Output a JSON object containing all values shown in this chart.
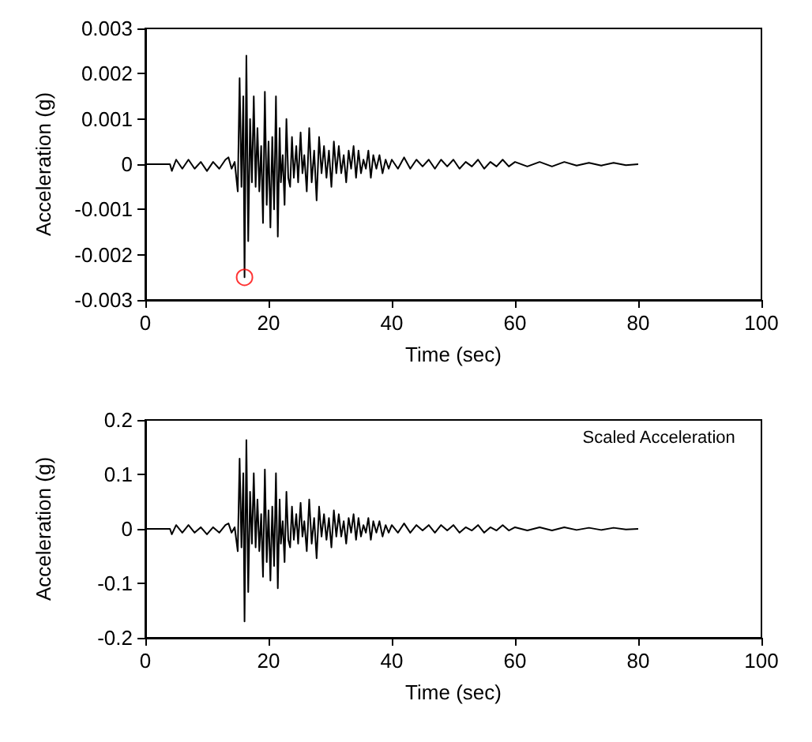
{
  "chart_data": [
    {
      "type": "line",
      "xlabel": "Time (sec)",
      "ylabel": "Acceleration (g)",
      "xlim": [
        0,
        100
      ],
      "xticks": [
        0,
        20,
        40,
        60,
        80,
        100
      ],
      "ylim": [
        -0.003,
        0.003
      ],
      "yticks": [
        -0.003,
        -0.002,
        -0.001,
        0,
        0.001,
        0.002,
        0.003
      ],
      "grid": false,
      "series": [
        {
          "color": "#000000",
          "marker": "none",
          "x": [
            0,
            4,
            4.3,
            5,
            6,
            7,
            8,
            9,
            10,
            11,
            12,
            13,
            13.5,
            14,
            14.5,
            15,
            15.3,
            15.6,
            15.9,
            16.1,
            16.4,
            16.7,
            17,
            17.3,
            17.6,
            17.9,
            18.2,
            18.5,
            18.8,
            19.1,
            19.4,
            19.7,
            20,
            20.3,
            20.6,
            20.9,
            21.2,
            21.5,
            21.8,
            22,
            22.3,
            22.6,
            22.9,
            23.2,
            23.5,
            23.8,
            24.1,
            24.5,
            24.8,
            25.2,
            25.5,
            25.8,
            26.2,
            26.6,
            27,
            27.4,
            27.8,
            28.2,
            28.6,
            29,
            29.4,
            29.8,
            30.2,
            30.6,
            31,
            31.4,
            31.8,
            32.2,
            32.6,
            33,
            33.4,
            33.8,
            34.2,
            34.6,
            35,
            35.4,
            35.8,
            36.2,
            36.6,
            37,
            37.5,
            38,
            38.5,
            39,
            39.5,
            40,
            41,
            42,
            43,
            44,
            45,
            46,
            47,
            48,
            49,
            50,
            51,
            52,
            53,
            54,
            55,
            56,
            57,
            58,
            59,
            60,
            62,
            64,
            66,
            68,
            70,
            72,
            74,
            76,
            78,
            80
          ],
          "values": [
            0,
            0,
            -0.00015,
            0.0001,
            -0.0001,
            0.0001,
            -0.0001,
            5e-05,
            -0.00015,
            5e-05,
            -0.0001,
            0.0001,
            0.00015,
            -0.0001,
            5e-05,
            -0.0006,
            0.0019,
            -0.0005,
            0.0015,
            -0.0025,
            0.0024,
            -0.0017,
            0.001,
            -0.0004,
            0.0015,
            -0.0005,
            0.0008,
            -0.0006,
            0.0004,
            -0.0013,
            0.0016,
            -0.0009,
            0.0005,
            -0.0014,
            0.0006,
            -0.001,
            0.0015,
            -0.0016,
            0.0008,
            -0.0004,
            0.0002,
            -0.0009,
            0.001,
            -0.0003,
            -0.0005,
            0.0006,
            -0.0003,
            0.0004,
            -0.0004,
            0.0007,
            -0.0002,
            0.0002,
            -0.0006,
            0.0008,
            -0.0004,
            0.0003,
            -0.0008,
            0.0006,
            -0.0002,
            0.0004,
            -0.0003,
            0.0003,
            -0.0005,
            0.0005,
            -0.0002,
            0.0004,
            -0.0002,
            0.0002,
            -0.0004,
            0.0003,
            -0.0001,
            0.0004,
            -0.0003,
            0.0003,
            -0.0002,
            0.0001,
            -0.0001,
            0.0003,
            -0.0003,
            0.0002,
            -0.0001,
            0.0002,
            -0.0002,
            0.0001,
            -0.0001,
            0.0001,
            -0.0001,
            0.00015,
            -0.0001,
            0.0001,
            -5e-05,
            0.0001,
            -0.0001,
            0.0001,
            -5e-05,
            0.0001,
            -0.0001,
            5e-05,
            -5e-05,
            0.0001,
            -0.0001,
            5e-05,
            -5e-05,
            0.0001,
            -5e-05,
            5e-05,
            -5e-05,
            5e-05,
            -5e-05,
            5e-05,
            -3e-05,
            3e-05,
            -3e-05,
            3e-05,
            -2e-05,
            0
          ]
        },
        {
          "type": "scatter",
          "color": "#ff0000",
          "marker": "circle",
          "x": [
            16.1
          ],
          "values": [
            -0.0025
          ]
        }
      ]
    },
    {
      "type": "line",
      "xlabel": "Time (sec)",
      "ylabel": "Acceleration (g)",
      "xlim": [
        0,
        100
      ],
      "xticks": [
        0,
        20,
        40,
        60,
        80,
        100
      ],
      "ylim": [
        -0.2,
        0.2
      ],
      "yticks": [
        -0.2,
        -0.1,
        0,
        0.1,
        0.2
      ],
      "grid": false,
      "annotations": [
        "Scaled Acceleration"
      ],
      "series": [
        {
          "color": "#000000",
          "marker": "none",
          "x": [
            0,
            4,
            4.3,
            5,
            6,
            7,
            8,
            9,
            10,
            11,
            12,
            13,
            13.5,
            14,
            14.5,
            15,
            15.3,
            15.6,
            15.9,
            16.1,
            16.4,
            16.7,
            17,
            17.3,
            17.6,
            17.9,
            18.2,
            18.5,
            18.8,
            19.1,
            19.4,
            19.7,
            20,
            20.3,
            20.6,
            20.9,
            21.2,
            21.5,
            21.8,
            22,
            22.3,
            22.6,
            22.9,
            23.2,
            23.5,
            23.8,
            24.1,
            24.5,
            24.8,
            25.2,
            25.5,
            25.8,
            26.2,
            26.6,
            27,
            27.4,
            27.8,
            28.2,
            28.6,
            29,
            29.4,
            29.8,
            30.2,
            30.6,
            31,
            31.4,
            31.8,
            32.2,
            32.6,
            33,
            33.4,
            33.8,
            34.2,
            34.6,
            35,
            35.4,
            35.8,
            36.2,
            36.6,
            37,
            37.5,
            38,
            38.5,
            39,
            39.5,
            40,
            41,
            42,
            43,
            44,
            45,
            46,
            47,
            48,
            49,
            50,
            51,
            52,
            53,
            54,
            55,
            56,
            57,
            58,
            59,
            60,
            62,
            64,
            66,
            68,
            70,
            72,
            74,
            76,
            78,
            80
          ],
          "values": [
            0,
            0,
            -0.01,
            0.007,
            -0.007,
            0.007,
            -0.007,
            0.003,
            -0.01,
            0.003,
            -0.007,
            0.007,
            0.01,
            -0.007,
            0.003,
            -0.041,
            0.129,
            -0.034,
            0.102,
            -0.17,
            0.163,
            -0.116,
            0.068,
            -0.027,
            0.102,
            -0.034,
            0.054,
            -0.041,
            0.027,
            -0.088,
            0.109,
            -0.061,
            0.034,
            -0.095,
            0.041,
            -0.068,
            0.102,
            -0.109,
            0.054,
            -0.027,
            0.014,
            -0.061,
            0.068,
            -0.02,
            -0.034,
            0.041,
            -0.02,
            0.027,
            -0.027,
            0.048,
            -0.014,
            0.014,
            -0.041,
            0.054,
            -0.027,
            0.02,
            -0.054,
            0.041,
            -0.014,
            0.027,
            -0.02,
            0.02,
            -0.034,
            0.034,
            -0.014,
            0.027,
            -0.014,
            0.014,
            -0.027,
            0.02,
            -0.007,
            0.027,
            -0.02,
            0.02,
            -0.014,
            0.007,
            -0.007,
            0.02,
            -0.02,
            0.014,
            -0.007,
            0.014,
            -0.014,
            0.007,
            -0.007,
            0.007,
            -0.007,
            0.01,
            -0.007,
            0.007,
            -0.003,
            0.007,
            -0.007,
            0.007,
            -0.003,
            0.007,
            -0.007,
            0.003,
            -0.003,
            0.007,
            -0.007,
            0.003,
            -0.003,
            0.007,
            -0.003,
            0.003,
            -0.003,
            0.003,
            -0.003,
            0.003,
            -0.002,
            0.002,
            -0.002,
            0.002,
            -0.001,
            0
          ]
        }
      ]
    }
  ]
}
